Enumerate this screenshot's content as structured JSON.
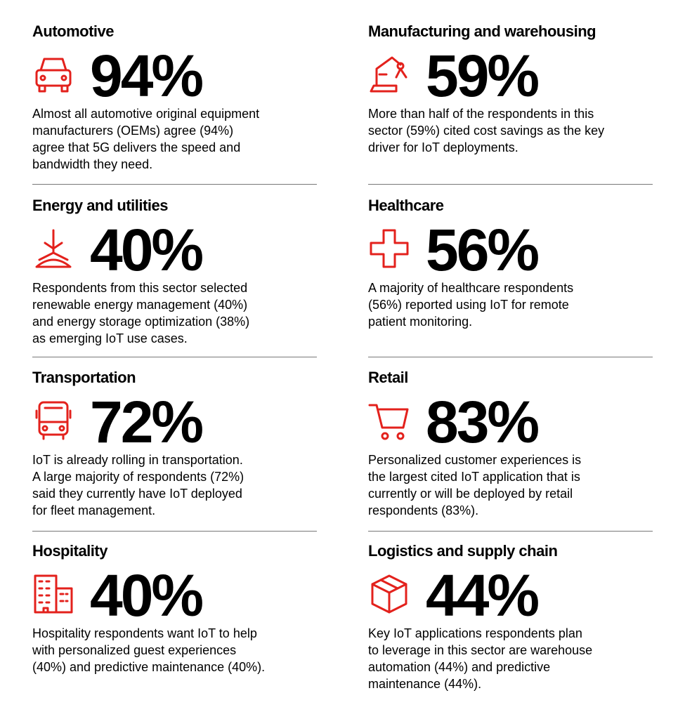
{
  "sectors": [
    {
      "title": "Automotive",
      "stat": "94%",
      "description": [
        "Almost all automotive original equipment",
        "manufacturers (OEMs) agree (94%)",
        "agree that 5G delivers the speed and",
        "bandwidth they need."
      ]
    },
    {
      "title": "Manufacturing and warehousing",
      "stat": "59%",
      "description": [
        "More than half of the respondents in this",
        "sector (59%) cited cost savings as the key",
        "driver for IoT deployments."
      ]
    },
    {
      "title": "Energy and utilities",
      "stat": "40%",
      "description": [
        "Respondents from this sector selected",
        "renewable energy management (40%)",
        "and energy storage optimization (38%)",
        "as emerging IoT use cases."
      ]
    },
    {
      "title": "Healthcare",
      "stat": "56%",
      "description": [
        "A majority of healthcare respondents",
        "(56%) reported using IoT for remote",
        "patient monitoring."
      ]
    },
    {
      "title": "Transportation",
      "stat": "72%",
      "description": [
        "IoT is already rolling in transportation.",
        "A large majority of respondents (72%)",
        "said they currently have IoT deployed",
        "for fleet management."
      ]
    },
    {
      "title": "Retail",
      "stat": "83%",
      "description": [
        "Personalized customer experiences is",
        "the largest cited IoT application that is",
        "currently or will be deployed by retail",
        "respondents (83%)."
      ]
    },
    {
      "title": "Hospitality",
      "stat": "40%",
      "description": [
        "Hospitality respondents want IoT to help",
        "with personalized guest experiences",
        "(40%) and predictive maintenance (40%)."
      ]
    },
    {
      "title": "Logistics and supply chain",
      "stat": "44%",
      "description": [
        "Key IoT applications respondents plan",
        "to leverage in this sector are warehouse",
        "automation (44%) and predictive",
        "maintenance (44%)."
      ]
    }
  ]
}
